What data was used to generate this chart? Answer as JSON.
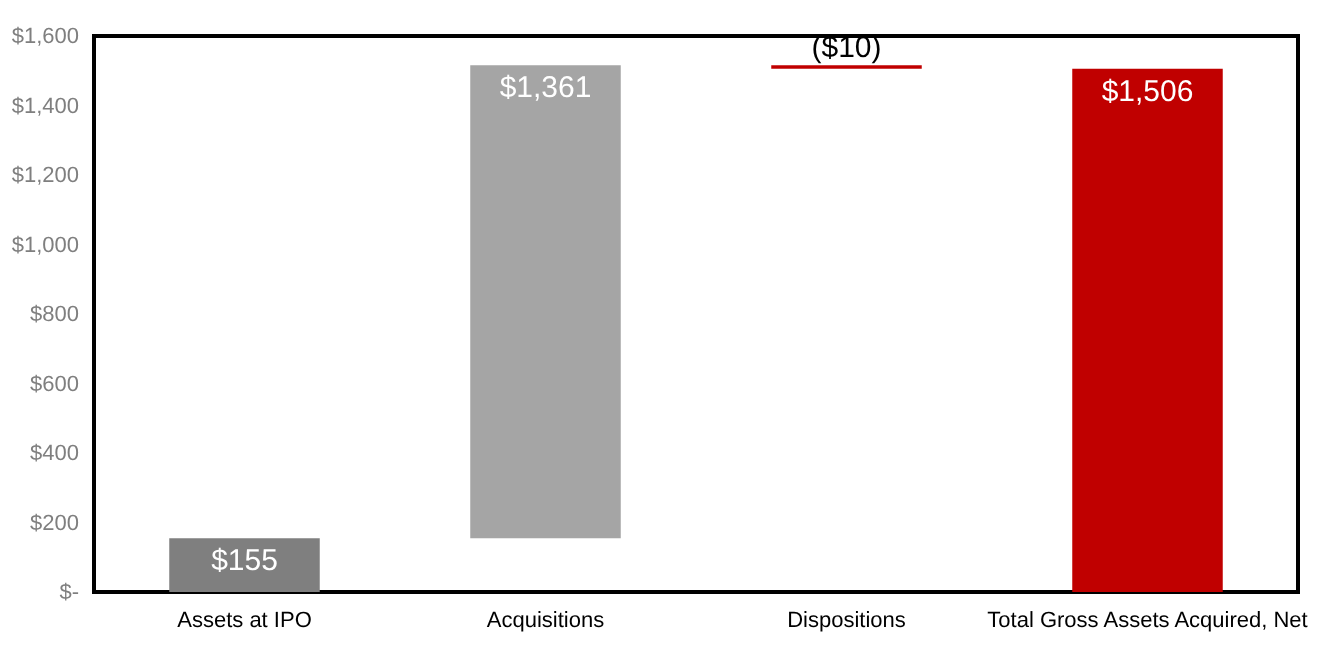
{
  "chart_data": {
    "type": "bar",
    "categories": [
      "Assets at IPO",
      "Acquisitions",
      "Dispositions",
      "Total Gross Assets Acquired, Net"
    ],
    "values": [
      155,
      1361,
      -10,
      1506
    ],
    "base": [
      0,
      155,
      1516,
      0
    ],
    "colors": [
      "#7f7f7f",
      "#a5a5a5",
      "#c00000",
      "#c00000"
    ],
    "value_labels": [
      "$155",
      "$1,361",
      "($10)",
      "$1,506"
    ],
    "ylim": [
      0,
      1600
    ],
    "yticks": [
      {
        "value": 0,
        "label": "$-"
      },
      {
        "value": 200,
        "label": "$200"
      },
      {
        "value": 400,
        "label": "$400"
      },
      {
        "value": 600,
        "label": "$600"
      },
      {
        "value": 800,
        "label": "$800"
      },
      {
        "value": 1000,
        "label": "$1,000"
      },
      {
        "value": 1200,
        "label": "$1,200"
      },
      {
        "value": 1400,
        "label": "$1,400"
      },
      {
        "value": 1600,
        "label": "$1,600"
      }
    ],
    "grid": false
  }
}
